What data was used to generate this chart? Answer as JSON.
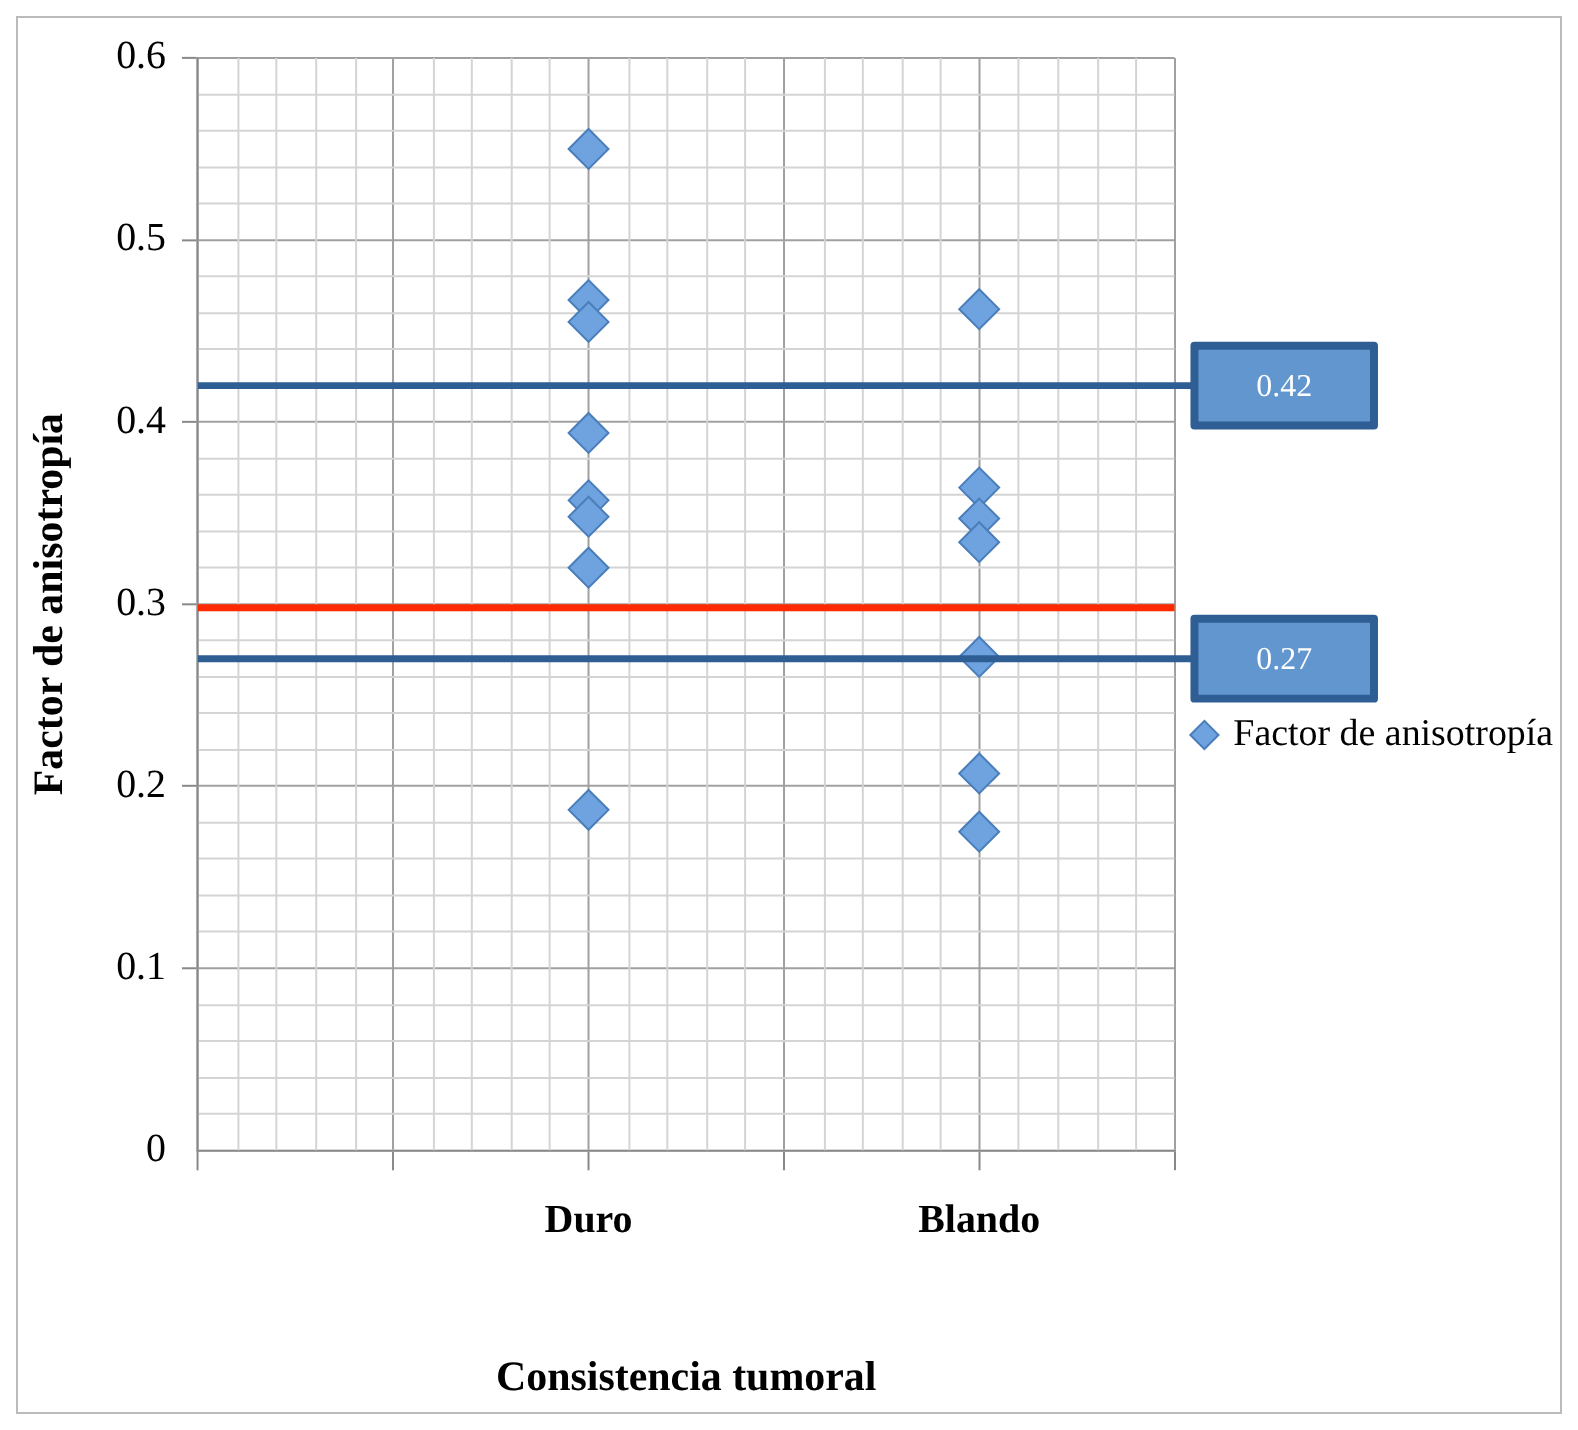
{
  "chart_data": {
    "type": "scatter",
    "xlabel": "Consistencia tumoral",
    "ylabel": "Factor de anisotropía",
    "categories": [
      null,
      null,
      "Duro",
      null,
      "Blando",
      null
    ],
    "ylim": [
      0,
      0.6
    ],
    "yticks": [
      0,
      {
        "value": 0.02,
        "label": null
      },
      {
        "value": 0.04,
        "label": null
      },
      {
        "value": 0.06,
        "label": null
      },
      {
        "value": 0.08,
        "label": null
      },
      0.1,
      {
        "value": 0.12,
        "label": null
      },
      {
        "value": 0.14,
        "label": null
      },
      {
        "value": 0.16,
        "label": null
      },
      {
        "value": 0.18,
        "label": null
      },
      0.2,
      {
        "value": 0.22,
        "label": null
      },
      {
        "value": 0.24,
        "label": null
      },
      {
        "value": 0.26,
        "label": null
      },
      {
        "value": 0.28,
        "label": null
      },
      0.3,
      {
        "value": 0.32,
        "label": null
      },
      {
        "value": 0.34,
        "label": null
      },
      {
        "value": 0.36,
        "label": null
      },
      {
        "value": 0.38,
        "label": null
      },
      0.4,
      {
        "value": 0.42,
        "label": null
      },
      {
        "value": 0.44,
        "label": null
      },
      {
        "value": 0.46,
        "label": null
      },
      {
        "value": 0.48,
        "label": null
      },
      0.5,
      {
        "value": 0.52,
        "label": null
      },
      {
        "value": 0.54,
        "label": null
      },
      {
        "value": 0.56,
        "label": null
      },
      {
        "value": 0.58,
        "label": null
      },
      0.6
    ],
    "grid": true,
    "legend": "right",
    "marker": "diamond",
    "series": [
      {
        "name": "Factor de anisotropía",
        "color": "#6fa3e0",
        "x": [
          "Duro",
          "Duro",
          "Duro",
          "Duro",
          "Duro",
          "Duro",
          "Duro",
          "Duro",
          "Blando",
          "Blando",
          "Blando",
          "Blando",
          "Blando",
          "Blando",
          "Blando"
        ],
        "values": [
          0.55,
          0.467,
          0.455,
          0.394,
          0.357,
          0.348,
          0.32,
          0.187,
          0.462,
          0.364,
          0.347,
          0.334,
          0.271,
          0.207,
          0.175
        ]
      }
    ],
    "ref_lines": [
      {
        "axis": "y",
        "value": 0.42,
        "label": "0.42",
        "color": "#2e5e94"
      },
      {
        "axis": "y",
        "value": 0.298,
        "color": "#ff2a00"
      },
      {
        "axis": "y",
        "value": 0.27,
        "label": "0.27",
        "color": "#2e5e94"
      }
    ]
  }
}
